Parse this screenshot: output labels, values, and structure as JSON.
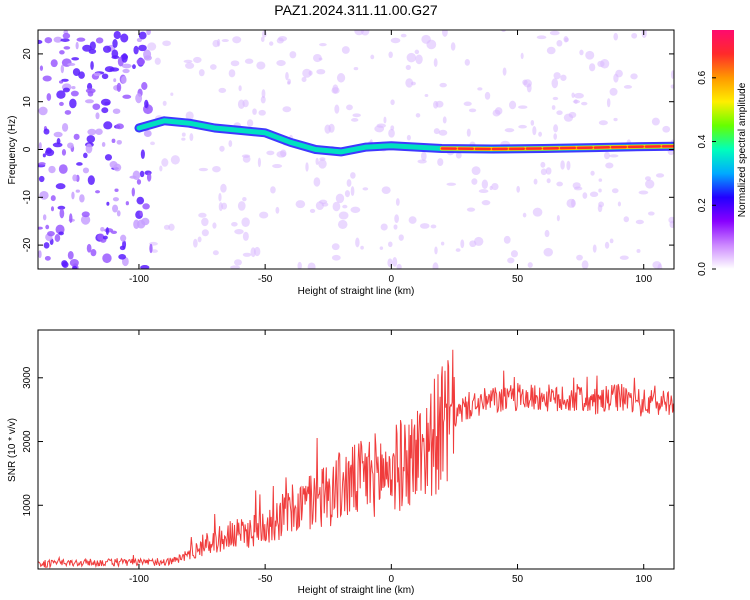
{
  "title": "PAZ1.2024.311.11.00.G27",
  "colors": {
    "line": "#f03c3c",
    "axis": "#000000",
    "colorbar_stops": [
      "#ff0a6e",
      "#ff2a2a",
      "#ff9900",
      "#ffee00",
      "#66ff00",
      "#00ffbb",
      "#00aaff",
      "#2200ff",
      "#8800ff",
      "#cc88ff",
      "#ffffff"
    ]
  },
  "chart_data": [
    {
      "type": "heatmap",
      "name": "spectrogram",
      "xlabel": "Height of straight line (km)",
      "ylabel": "Frequency (Hz)",
      "xlim": [
        -140,
        112
      ],
      "ylim": [
        -25,
        25
      ],
      "xticks": [
        -100,
        -50,
        0,
        50,
        100
      ],
      "yticks": [
        -20,
        -10,
        0,
        10,
        20
      ],
      "xtick_labels": [
        "-100",
        "-50",
        "0",
        "50",
        "100"
      ],
      "ytick_labels": [
        "-20",
        "-10",
        "0",
        "10",
        "20"
      ],
      "colorbar": {
        "label": "Normalized spectral amplitude",
        "range": [
          0,
          0.75
        ],
        "ticks": [
          0,
          0.2,
          0.4,
          0.6
        ],
        "tick_labels": [
          "0.0",
          "0.2",
          "0.4",
          "0.6"
        ]
      },
      "ridge": [
        {
          "x": -100,
          "y": 4.5
        },
        {
          "x": -90,
          "y": 6
        },
        {
          "x": -80,
          "y": 5.5
        },
        {
          "x": -70,
          "y": 4.5
        },
        {
          "x": -60,
          "y": 4
        },
        {
          "x": -50,
          "y": 3.5
        },
        {
          "x": -40,
          "y": 1.5
        },
        {
          "x": -30,
          "y": 0
        },
        {
          "x": -20,
          "y": -0.5
        },
        {
          "x": -10,
          "y": 0.5
        },
        {
          "x": 0,
          "y": 0.8
        },
        {
          "x": 10,
          "y": 0.5
        },
        {
          "x": 20,
          "y": 0.2
        },
        {
          "x": 40,
          "y": 0.1
        },
        {
          "x": 60,
          "y": 0.2
        },
        {
          "x": 80,
          "y": 0.4
        },
        {
          "x": 100,
          "y": 0.6
        },
        {
          "x": 112,
          "y": 0.7
        }
      ]
    },
    {
      "type": "line",
      "name": "snr",
      "xlabel": "Height of straight line (km)",
      "ylabel": "SNR (10 * v/v)",
      "xlim": [
        -140,
        112
      ],
      "ylim": [
        0,
        3750
      ],
      "xticks": [
        -100,
        -50,
        0,
        50,
        100
      ],
      "yticks": [
        1000,
        2000,
        3000
      ],
      "xtick_labels": [
        "-100",
        "-50",
        "0",
        "50",
        "100"
      ],
      "ytick_labels": [
        "1000",
        "2000",
        "3000"
      ],
      "series": [
        {
          "x": [
            -140,
            -130,
            -120,
            -110,
            -100,
            -90,
            -85,
            -80,
            -75,
            -70,
            -65,
            -60,
            -55,
            -50,
            -45,
            -40,
            -35,
            -30,
            -25,
            -20,
            -15,
            -10,
            -5,
            0,
            5,
            10,
            15,
            20,
            25,
            30,
            35,
            40,
            45,
            50,
            55,
            60,
            65,
            70,
            75,
            80,
            85,
            90,
            95,
            100,
            105,
            112
          ],
          "y": [
            80,
            90,
            100,
            100,
            100,
            110,
            140,
            250,
            350,
            450,
            500,
            550,
            600,
            700,
            800,
            900,
            1000,
            1100,
            1200,
            1300,
            1350,
            1450,
            1500,
            1550,
            1650,
            1800,
            2000,
            2200,
            2400,
            2550,
            2600,
            2650,
            2650,
            2700,
            2680,
            2700,
            2650,
            2650,
            2700,
            2600,
            2650,
            2700,
            2650,
            2600,
            2600,
            2650
          ]
        }
      ]
    }
  ]
}
